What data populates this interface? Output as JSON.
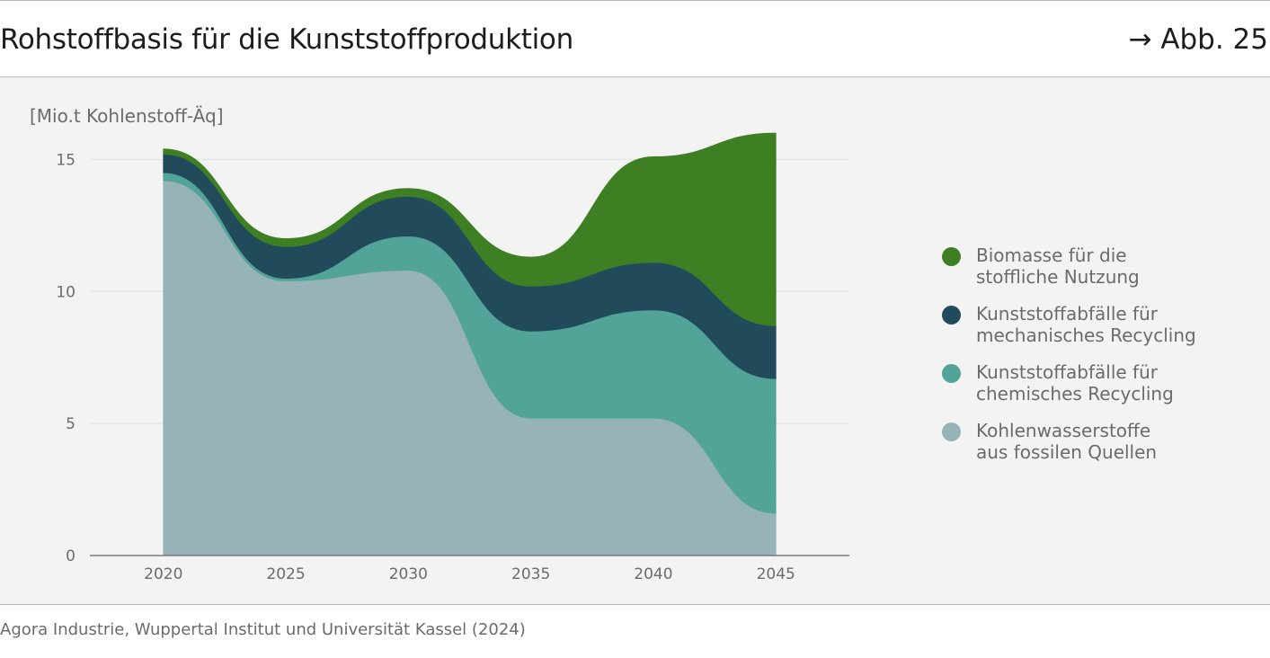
{
  "header": {
    "title": "Rohstoffbasis für die Kunststoffproduktion",
    "figure_ref": "→ Abb. 25"
  },
  "source": "Agora Industrie, Wuppertal Institut und Universität Kassel (2024)",
  "colors": {
    "biomass": "#3f7f24",
    "mechanical": "#214b5b",
    "chemical": "#52a398",
    "fossil": "#96b3b8",
    "grid": "#e4e4e4",
    "axis": "#7a7a7a"
  },
  "chart_data": {
    "type": "area",
    "stacked": true,
    "ylabel": "[Mio.t Kohlenstoff-Äq]",
    "x": [
      2020,
      2025,
      2030,
      2035,
      2040,
      2045
    ],
    "xlim": [
      2017,
      2048
    ],
    "ylim": [
      0,
      16
    ],
    "y_ticks": [
      0,
      5,
      10,
      15
    ],
    "grid": true,
    "legend_position": "right",
    "series": [
      {
        "name": "Kohlenwasserstoffe aus fossilen Quellen",
        "key": "fossil",
        "values": [
          14.2,
          10.4,
          10.8,
          5.2,
          5.2,
          1.6
        ]
      },
      {
        "name": "Kunststoffabfälle für chemisches Recycling",
        "key": "chemical",
        "values": [
          0.3,
          0.1,
          1.3,
          3.3,
          4.1,
          5.1
        ]
      },
      {
        "name": "Kunststoffabfälle für mechanisches Recycling",
        "key": "mechanical",
        "values": [
          0.7,
          1.2,
          1.5,
          1.7,
          1.8,
          2.0
        ]
      },
      {
        "name": "Biomasse für die stoffliche Nutzung",
        "key": "biomass",
        "values": [
          0.2,
          0.3,
          0.3,
          1.1,
          4.0,
          7.3
        ]
      }
    ]
  },
  "legend": [
    {
      "key": "biomass",
      "label": "Biomasse für die\nstoffliche Nutzung"
    },
    {
      "key": "mechanical",
      "label": "Kunststoffabfälle für\nmechanisches Recycling"
    },
    {
      "key": "chemical",
      "label": "Kunststoffabfälle für\nchemisches Recycling"
    },
    {
      "key": "fossil",
      "label": "Kohlenwasserstoffe\naus fossilen Quellen"
    }
  ]
}
